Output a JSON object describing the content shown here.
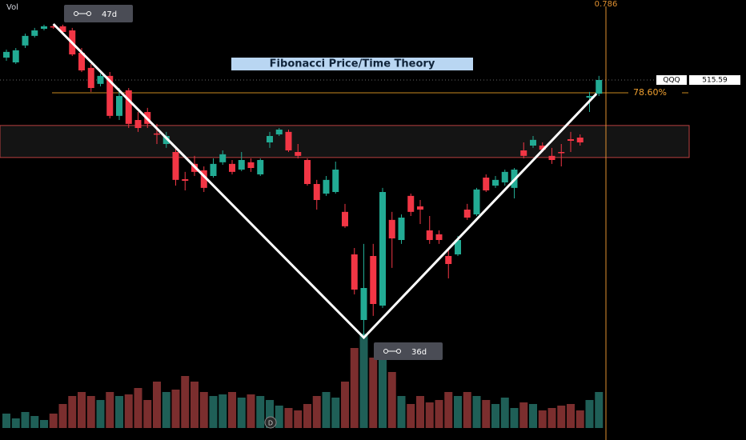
{
  "chart_data": {
    "type": "candlestick",
    "title": "Fibonacci Price/Time Theory",
    "volume_label": "Vol",
    "ylim": [
      358.1,
      550.6
    ],
    "vlim": [
      0,
      130
    ],
    "up_color": "#22ab94",
    "down_color": "#f23645",
    "volume_up_color": "#1f5f57",
    "volume_down_color": "#7b2e2e",
    "candles": {
      "open": [
        525.4,
        523.3,
        530.7,
        534.9,
        538.0,
        539.1,
        539.1,
        537.3,
        527.5,
        520.9,
        513.9,
        517.4,
        499.9,
        511.1,
        498.1,
        501.6,
        492.2,
        487.6,
        484.1,
        472.2,
        478.9,
        476.1,
        473.6,
        479.6,
        478.9,
        476.4,
        479.6,
        474.3,
        488.3,
        491.8,
        492.9,
        484.1,
        480.6,
        470.1,
        465.9,
        466.6,
        457.9,
        439.3,
        410.6,
        438.6,
        416.9,
        454.4,
        445.6,
        464.9,
        460.3,
        449.8,
        448.1,
        438.6,
        439.3,
        458.9,
        456.8,
        472.9,
        469.4,
        470.8,
        468.4,
        484.8,
        486.9,
        486.9,
        482.4,
        484.1,
        489.7,
        490.4,
        507.9,
        509.6
      ],
      "high": [
        528.9,
        529.6,
        535.9,
        538.4,
        539.8,
        540.1,
        539.8,
        538.4,
        529.6,
        522.6,
        518.4,
        519.1,
        512.1,
        512.1,
        501.6,
        503.4,
        496.4,
        492.9,
        485.9,
        475.4,
        482.4,
        477.8,
        481.3,
        484.8,
        480.6,
        484.1,
        481.3,
        481.3,
        492.9,
        494.6,
        493.9,
        487.6,
        481.3,
        471.9,
        473.6,
        479.9,
        461.4,
        442.1,
        443.9,
        443.9,
        468.4,
        457.9,
        456.8,
        465.9,
        463.1,
        456.1,
        449.8,
        441.4,
        447.4,
        461.4,
        468.4,
        474.3,
        473.6,
        476.4,
        477.1,
        488.3,
        491.1,
        488.3,
        485.9,
        487.6,
        492.9,
        491.8,
        510.4,
        517.4
      ],
      "low": [
        524.0,
        522.6,
        529.6,
        534.2,
        537.3,
        538.0,
        535.9,
        526.1,
        519.1,
        510.4,
        512.8,
        498.8,
        498.1,
        494.6,
        492.9,
        494.6,
        487.6,
        485.9,
        469.4,
        467.3,
        473.6,
        466.6,
        472.9,
        478.5,
        474.3,
        475.7,
        475.4,
        473.6,
        485.9,
        491.1,
        484.1,
        481.3,
        469.4,
        458.9,
        464.9,
        465.9,
        450.9,
        421.8,
        402.9,
        412.4,
        415.9,
        433.4,
        443.9,
        456.1,
        452.6,
        443.9,
        443.9,
        428.8,
        438.6,
        454.4,
        456.1,
        466.6,
        468.4,
        469.4,
        463.8,
        481.3,
        485.9,
        484.1,
        478.9,
        477.8,
        484.1,
        486.9,
        501.6,
        508.6
      ],
      "close": [
        527.9,
        528.6,
        534.9,
        537.3,
        539.1,
        538.9,
        536.6,
        526.8,
        519.8,
        512.1,
        517.4,
        499.9,
        508.6,
        496.4,
        494.6,
        496.4,
        491.8,
        491.1,
        471.9,
        471.5,
        475.4,
        468.4,
        478.9,
        483.1,
        475.4,
        480.6,
        477.1,
        480.6,
        491.1,
        493.9,
        484.8,
        482.4,
        470.1,
        463.1,
        471.9,
        476.4,
        451.6,
        423.9,
        424.6,
        417.6,
        466.6,
        446.3,
        455.4,
        457.9,
        458.9,
        445.6,
        445.6,
        435.1,
        445.6,
        455.4,
        467.7,
        467.3,
        471.9,
        475.4,
        476.4,
        482.4,
        489.4,
        485.1,
        480.6,
        483.7,
        489.0,
        488.3,
        508.6,
        515.6
      ]
    },
    "volume": [
      18,
      12,
      20,
      15,
      10,
      18,
      30,
      40,
      45,
      40,
      35,
      45,
      40,
      42,
      50,
      35,
      58,
      45,
      48,
      65,
      58,
      45,
      40,
      42,
      45,
      38,
      42,
      40,
      35,
      28,
      25,
      22,
      30,
      40,
      45,
      38,
      58,
      100,
      118,
      88,
      100,
      70,
      40,
      30,
      40,
      32,
      35,
      45,
      40,
      45,
      40,
      35,
      30,
      38,
      25,
      32,
      30,
      22,
      25,
      28,
      30,
      22,
      35,
      45
    ],
    "last_price": {
      "symbol": "QQQ",
      "value": 515.59
    },
    "fib_level": {
      "price": 510.0,
      "percent": {
        "value": 78.6,
        "label": "78.60%"
      },
      "ratio": 0.786
    },
    "zone": {
      "top": 495.7,
      "bottom": 481.7
    },
    "time_spans": [
      "47d",
      "36d"
    ],
    "interval": "D"
  }
}
